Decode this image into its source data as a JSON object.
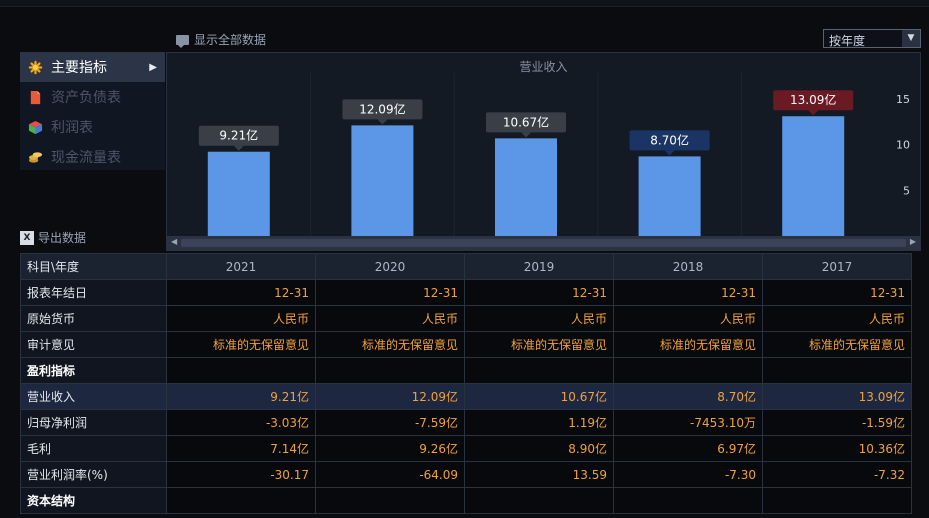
{
  "toolbar": {
    "show_all_label": "显示全部数据",
    "period_select": "按年度"
  },
  "sidebar": {
    "items": [
      {
        "label": "主要指标",
        "active": true,
        "icon": "asterisk-icon"
      },
      {
        "label": "资产负债表",
        "active": false,
        "icon": "document-icon"
      },
      {
        "label": "利润表",
        "active": false,
        "icon": "cube-icon"
      },
      {
        "label": "现金流量表",
        "active": false,
        "icon": "coins-icon"
      }
    ]
  },
  "chart_data": {
    "type": "bar",
    "title": "营业收入",
    "categories": [
      "2021",
      "2020",
      "2019",
      "2018",
      "2017"
    ],
    "values": [
      9.21,
      12.09,
      10.67,
      8.7,
      13.09
    ],
    "data_labels": [
      "9.21亿",
      "12.09亿",
      "10.67亿",
      "8.70亿",
      "13.09亿"
    ],
    "ylim": [
      0,
      20
    ],
    "yticks": [
      5,
      10,
      15
    ],
    "bar_color": "#5b97e6",
    "label_colors": [
      "#3a3f47",
      "#3a3f47",
      "#3a3f47",
      "#1a3466",
      "#6a1a22"
    ],
    "grid": false
  },
  "export_label": "导出数据",
  "table": {
    "header_label": "科目\\年度",
    "years": [
      "2021",
      "2020",
      "2019",
      "2018",
      "2017"
    ],
    "rows": [
      {
        "label": "报表年结日",
        "values": [
          "12-31",
          "12-31",
          "12-31",
          "12-31",
          "12-31"
        ]
      },
      {
        "label": "原始货币",
        "values": [
          "人民币",
          "人民币",
          "人民币",
          "人民币",
          "人民币"
        ]
      },
      {
        "label": "审计意见",
        "values": [
          "标准的无保留意见",
          "标准的无保留意见",
          "标准的无保留意见",
          "标准的无保留意见",
          "标准的无保留意见"
        ]
      },
      {
        "label": "盈利指标",
        "section": true,
        "values": [
          "",
          "",
          "",
          "",
          ""
        ]
      },
      {
        "label": "营业收入",
        "highlight": true,
        "values": [
          "9.21亿",
          "12.09亿",
          "10.67亿",
          "8.70亿",
          "13.09亿"
        ]
      },
      {
        "label": "归母净利润",
        "values": [
          "-3.03亿",
          "-7.59亿",
          "1.19亿",
          "-7453.10万",
          "-1.59亿"
        ]
      },
      {
        "label": "毛利",
        "values": [
          "7.14亿",
          "9.26亿",
          "8.90亿",
          "6.97亿",
          "10.36亿"
        ]
      },
      {
        "label": "营业利润率(%)",
        "values": [
          "-30.17",
          "-64.09",
          "13.59",
          "-7.30",
          "-7.32"
        ]
      },
      {
        "label": "资本结构",
        "section": true,
        "values": [
          "",
          "",
          "",
          "",
          ""
        ]
      }
    ]
  }
}
